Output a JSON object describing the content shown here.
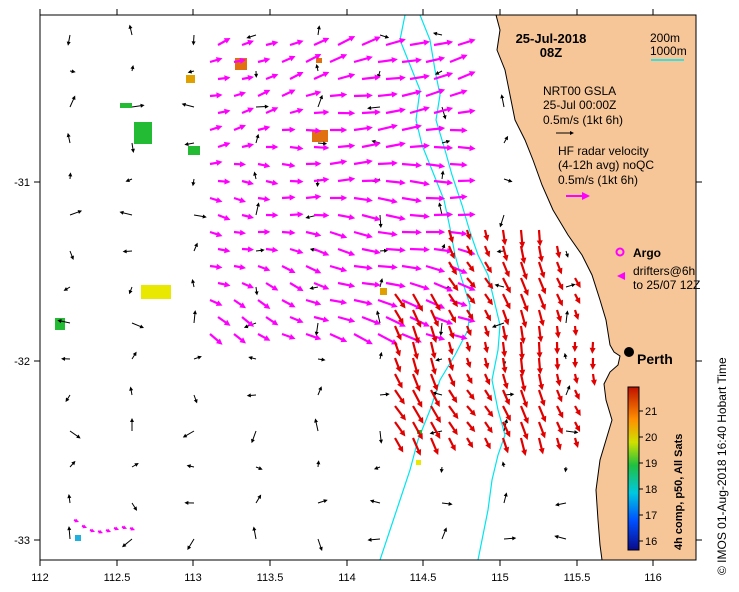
{
  "map": {
    "date": "25-Jul-2018",
    "time": "08Z",
    "x_ticks": [
      "112",
      "112.5",
      "113",
      "113.5",
      "114",
      "114.5",
      "115",
      "115.5",
      "116"
    ],
    "y_ticks": [
      "-31",
      "-32",
      "-33"
    ],
    "isobaths": [
      "200m",
      "1000m"
    ],
    "altimetry": {
      "title": "NRT00 GSLA",
      "date": "25-Jul 00:00Z",
      "scale": "0.5m/s (1kt 6h)"
    },
    "radar": {
      "title": "HF radar velocity",
      "avg": "(4-12h avg) noQC",
      "scale": "0.5m/s (1kt 6h)"
    },
    "argo_label": "Argo",
    "drifters": {
      "line1": "drifters@6h",
      "line2": "to 25/07 12Z"
    },
    "city": "Perth",
    "colorbar": {
      "title": "4h comp, p50, All Sats",
      "ticks": [
        "21",
        "20",
        "19",
        "18",
        "17",
        "16"
      ]
    },
    "credit": "© IMOS 01-Aug-2018 16:40 Hobart Time",
    "colors": {
      "land": "#f7c698",
      "sst_arrow": "#ff00ff",
      "radar_arrow": "#ee0000",
      "isobath": "#00e5ee",
      "geo_arrow": "#000000"
    }
  }
}
